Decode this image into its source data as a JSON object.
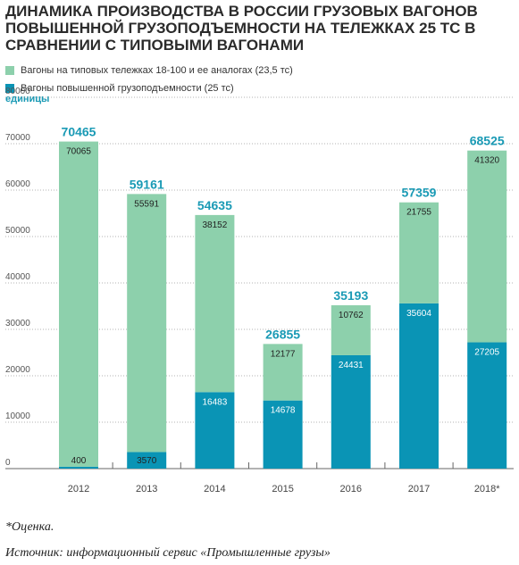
{
  "title": "ДИНАМИКА ПРОИЗВОДСТВА В РОССИИ ГРУЗОВЫХ ВАГОНОВ ПОВЫШЕННОЙ ГРУЗОПОДЪЕМНОСТИ НА ТЕЛЕЖКАХ 25 ТС В СРАВНЕНИИ С ТИПОВЫМИ ВАГОНАМИ",
  "unit_label": "единицы",
  "footnote": "*Оценка.",
  "source": "Источник: информационный сервис «Промышленные грузы»",
  "colors": {
    "typical": "#8dd0ac",
    "high": "#0a94b5",
    "total": "#1a9ab5",
    "axis": "#666666",
    "text": "#222222"
  },
  "chart_data": {
    "type": "bar",
    "stacked": true,
    "categories": [
      "2012",
      "2013",
      "2014",
      "2015",
      "2016",
      "2017",
      "2018*"
    ],
    "series": [
      {
        "name": "Вагоны повышенной грузоподъемности (25 тс)",
        "key": "high",
        "values": [
          400,
          3570,
          16483,
          14678,
          24431,
          35604,
          27205
        ]
      },
      {
        "name": "Вагоны на типовых тележках 18-100 и ее аналогах (23,5 тс)",
        "key": "typical",
        "values": [
          70065,
          55591,
          38152,
          12177,
          10762,
          21755,
          41320
        ]
      }
    ],
    "totals": [
      "70465",
      "59161",
      "54635",
      "26855",
      "35193",
      "57359",
      "68525"
    ],
    "high_labels": [
      "400",
      "3570",
      "16483",
      "14678",
      "24431",
      "35604",
      "27205"
    ],
    "typical_labels": [
      "70065",
      "55591",
      "38152",
      "12177",
      "10762",
      "21755",
      "41320"
    ],
    "legend_order": [
      "typical",
      "high"
    ],
    "ylim": [
      0,
      80000
    ],
    "yticks": [
      0,
      10000,
      20000,
      30000,
      40000,
      50000,
      60000,
      70000,
      80000
    ],
    "ytick_labels": [
      "0",
      "10000",
      "20000",
      "30000",
      "40000",
      "50000",
      "60000",
      "70000",
      "80000"
    ],
    "ylabel": "единицы",
    "grid": "dotted",
    "legend_position": "top-left"
  }
}
